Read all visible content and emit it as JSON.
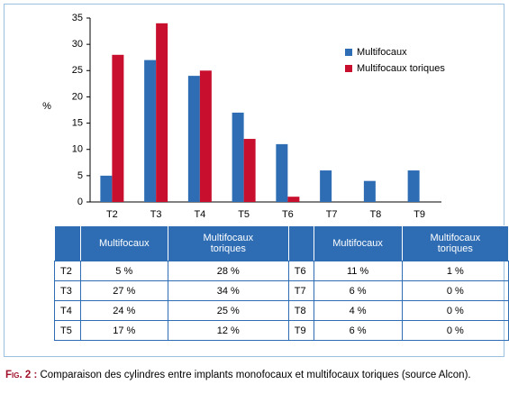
{
  "chart_data": {
    "type": "bar",
    "y_label": "%",
    "categories": [
      "T2",
      "T3",
      "T4",
      "T5",
      "T6",
      "T7",
      "T8",
      "T9"
    ],
    "series": [
      {
        "name": "Multifocaux",
        "color": "#2e6db4",
        "values": [
          5,
          27,
          24,
          17,
          11,
          6,
          4,
          6
        ]
      },
      {
        "name": "Multifocaux toriques",
        "color": "#c8102e",
        "values": [
          28,
          34,
          25,
          12,
          1,
          0,
          0,
          0
        ]
      }
    ],
    "ylim": [
      0,
      35
    ],
    "yticks": [
      0,
      5,
      10,
      15,
      20,
      25,
      30,
      35
    ],
    "grid": false,
    "legend": "upper right"
  },
  "table": {
    "header": [
      "Multifocaux",
      "Multifocaux toriques",
      "Multifocaux",
      "Multifocaux toriques"
    ],
    "rows": [
      [
        "T2",
        "5 %",
        "28 %",
        "T6",
        "11 %",
        "1 %"
      ],
      [
        "T3",
        "27 %",
        "34 %",
        "T7",
        "6 %",
        "0 %"
      ],
      [
        "T4",
        "24 %",
        "25 %",
        "T8",
        "4 %",
        "0 %"
      ],
      [
        "T5",
        "17 %",
        "12 %",
        "T9",
        "6 %",
        "0 %"
      ]
    ]
  },
  "caption": {
    "label": "Fig. 2 :",
    "text": "Comparaison des cylindres entre implants monofocaux et multifocaux toriques (source Alcon)."
  }
}
